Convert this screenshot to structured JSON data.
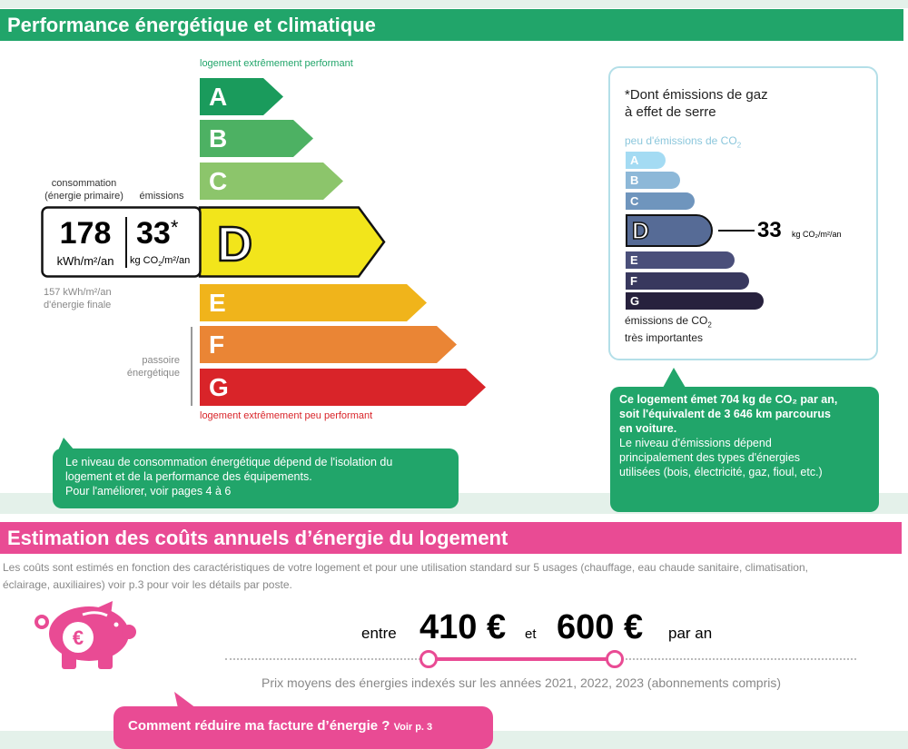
{
  "colors": {
    "green": "#21a56a",
    "pink": "#e94b94",
    "light_band": "#e4f1ea"
  },
  "energy": {
    "title": "Performance énergétique et climatique",
    "top_label": "logement extrêmement performant",
    "bottom_label": "logement extrêmement peu performant",
    "classes": [
      {
        "letter": "A",
        "color": "#1a9b5c"
      },
      {
        "letter": "B",
        "color": "#4db163"
      },
      {
        "letter": "C",
        "color": "#8cc56b"
      },
      {
        "letter": "D",
        "color": "#f2e51b"
      },
      {
        "letter": "E",
        "color": "#f0b41b"
      },
      {
        "letter": "F",
        "color": "#ea8535"
      },
      {
        "letter": "G",
        "color": "#d92429"
      }
    ],
    "current_class": "D",
    "consumption_label_1": "consommation",
    "consumption_label_2": "(énergie primaire)",
    "emissions_label": "émissions",
    "consumption_value": "178",
    "consumption_unit": "kWh/m²/an",
    "emissions_value": "33",
    "emissions_star": "*",
    "emissions_unit_pre": "kg CO",
    "emissions_unit_sub": "2",
    "emissions_unit_post": "/m²/an",
    "final_energy_1": "157 kWh/m²/an",
    "final_energy_2": "d'énergie finale",
    "passoire_1": "passoire",
    "passoire_2": "énergétique",
    "callout_1": "Le niveau de consommation énergétique dépend de l'isolation du",
    "callout_2": "logement et de la performance des équipements.",
    "callout_3": "Pour l'améliorer, voir pages 4 à 6"
  },
  "ges": {
    "title_1": "*Dont émissions de gaz",
    "title_2": "à effet de serre",
    "top_label": "peu d'émissions de CO",
    "bottom_label_1": "émissions de CO",
    "bottom_label_2": "très importantes",
    "classes": [
      {
        "letter": "A",
        "color": "#a4dbf3"
      },
      {
        "letter": "B",
        "color": "#8db8d8"
      },
      {
        "letter": "C",
        "color": "#6f95bd"
      },
      {
        "letter": "D",
        "color": "#566b96"
      },
      {
        "letter": "E",
        "color": "#4a4f7a"
      },
      {
        "letter": "F",
        "color": "#38385e"
      },
      {
        "letter": "G",
        "color": "#27213d"
      }
    ],
    "current_class": "D",
    "value": "33",
    "unit": "kg CO₂/m²/an",
    "callout_1": "Ce logement émet 704 kg de CO₂ par an,",
    "callout_2": "soit l'équivalent de 3 646 km parcourus",
    "callout_3": "en voiture.",
    "callout_4": "Le niveau d'émissions dépend",
    "callout_5": "principalement des types d'énergies",
    "callout_6": "utilisées (bois, électricité, gaz, fioul, etc.)"
  },
  "costs": {
    "title": "Estimation des coûts annuels d’énergie du logement",
    "description_1": "Les coûts sont estimés en fonction des caractéristiques de votre logement et pour une utilisation standard sur 5 usages (chauffage, eau chaude sanitaire, climatisation,",
    "description_2": "éclairage, auxiliaires) voir p.3 pour voir les détails par poste.",
    "between": "entre",
    "min": "410 €",
    "and": "et",
    "max": "600 €",
    "per_year": "par an",
    "note": "Prix moyens des énergies indexés sur les années 2021, 2022, 2023 (abonnements compris)",
    "button_main": "Comment réduire ma facture d’énergie ?",
    "button_sub": "Voir p. 3"
  }
}
